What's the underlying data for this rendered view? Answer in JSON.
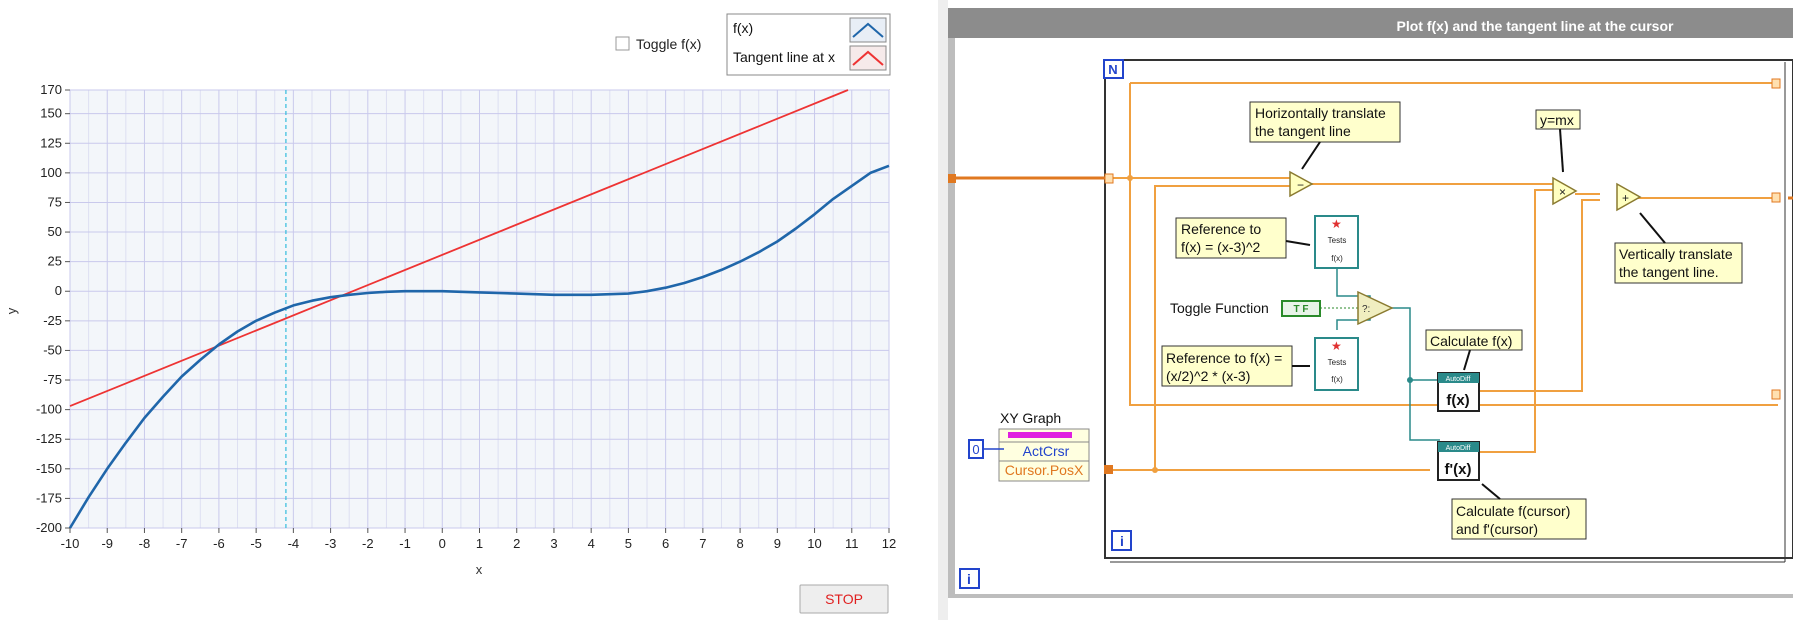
{
  "front_panel": {
    "toggle_label": "Toggle f(x)",
    "toggle_checked": false,
    "legend": [
      "f(x)",
      "Tangent line at x"
    ],
    "stop_label": "STOP",
    "colors": {
      "fx": "#1f66aa",
      "tangent": "#ee3333",
      "cursor": "#33bbdd",
      "plot_bg": "#f3f6fa",
      "grid": "#c9c9ec"
    }
  },
  "chart_data": {
    "type": "line",
    "xlabel": "x",
    "ylabel": "y",
    "xlim": [
      -10,
      12
    ],
    "ylim": [
      -200,
      170
    ],
    "x_ticks": [
      "-10",
      "-9",
      "-8",
      "-7",
      "-6",
      "-5",
      "-4",
      "-3",
      "-2",
      "-1",
      "0",
      "1",
      "2",
      "3",
      "4",
      "5",
      "6",
      "7",
      "8",
      "9",
      "10",
      "11",
      "12"
    ],
    "y_ticks": [
      "-200",
      "-175",
      "-150",
      "-125",
      "-100",
      "-75",
      "-50",
      "-25",
      "0",
      "25",
      "50",
      "75",
      "100",
      "125",
      "150",
      "170"
    ],
    "grid": true,
    "legend_position": "top-right",
    "cursor_x": -4.2,
    "series": [
      {
        "name": "f(x)",
        "color": "#1f66aa",
        "x": [
          -10,
          -9.5,
          -9,
          -8.5,
          -8,
          -7.5,
          -7,
          -6.5,
          -6,
          -5.5,
          -5,
          -4.5,
          -4,
          -3.5,
          -3,
          -2.5,
          -2,
          -1.5,
          -1,
          -0.5,
          0,
          0.5,
          1,
          1.5,
          2,
          2.5,
          3,
          3.5,
          4,
          4.5,
          5,
          5.5,
          6,
          6.5,
          7,
          7.5,
          8,
          8.5,
          9,
          9.5,
          10,
          10.5,
          11,
          11.5,
          12
        ],
        "y": [
          -200,
          -174,
          -150,
          -128,
          -107,
          -89,
          -72,
          -58,
          -45,
          -34,
          -25,
          -18,
          -12,
          -8,
          -5,
          -3,
          -1.5,
          -0.5,
          0,
          0,
          0,
          -0.5,
          -1,
          -1.5,
          -2,
          -2.5,
          -3,
          -3,
          -3,
          -2.5,
          -2,
          0,
          3,
          7,
          12,
          18,
          25,
          33,
          42,
          53,
          65,
          78,
          89,
          100,
          106
        ]
      },
      {
        "name": "Tangent line at x",
        "color": "#ee3333",
        "x": [
          -10,
          10.9
        ],
        "y": [
          -97,
          170
        ]
      }
    ]
  },
  "block_diagram": {
    "title": "Plot f(x) and the tangent line at the cursor",
    "n_label": "N",
    "i_label": "i",
    "zero_const": "0",
    "xy_graph_label": "XY Graph",
    "prop_act": "ActCrsr",
    "prop_pos": "Cursor.PosX",
    "tf_label": "T F",
    "toggle_function": "Toggle Function",
    "note_h1": "Horizontally translate",
    "note_h2": "the tangent line",
    "note_mx": "y=mx",
    "note_ref1a": "Reference to",
    "note_ref1b": "f(x) = (x-3)^2",
    "note_ref2a": "Reference to f(x) =",
    "note_ref2b": "(x/2)^2 * (x-3)",
    "note_calc": "Calculate f(x)",
    "note_v1": "Vertically translate",
    "note_v2": "the tangent line.",
    "note_cc1": "Calculate f(cursor)",
    "note_cc2": "and f'(cursor)",
    "fx_label": "f(x)",
    "fpx_label": "f'(x)",
    "autodiff": "AutoDiff",
    "tests": "Tests",
    "op_minus": "−",
    "op_times": "×",
    "op_plus": "+",
    "colors": {
      "wire": "#f0a040",
      "wire_dark": "#e07820",
      "ref_wire": "#2a8a8a",
      "note_bg": "#ffffcc",
      "frame_blue": "#2244cc"
    }
  }
}
